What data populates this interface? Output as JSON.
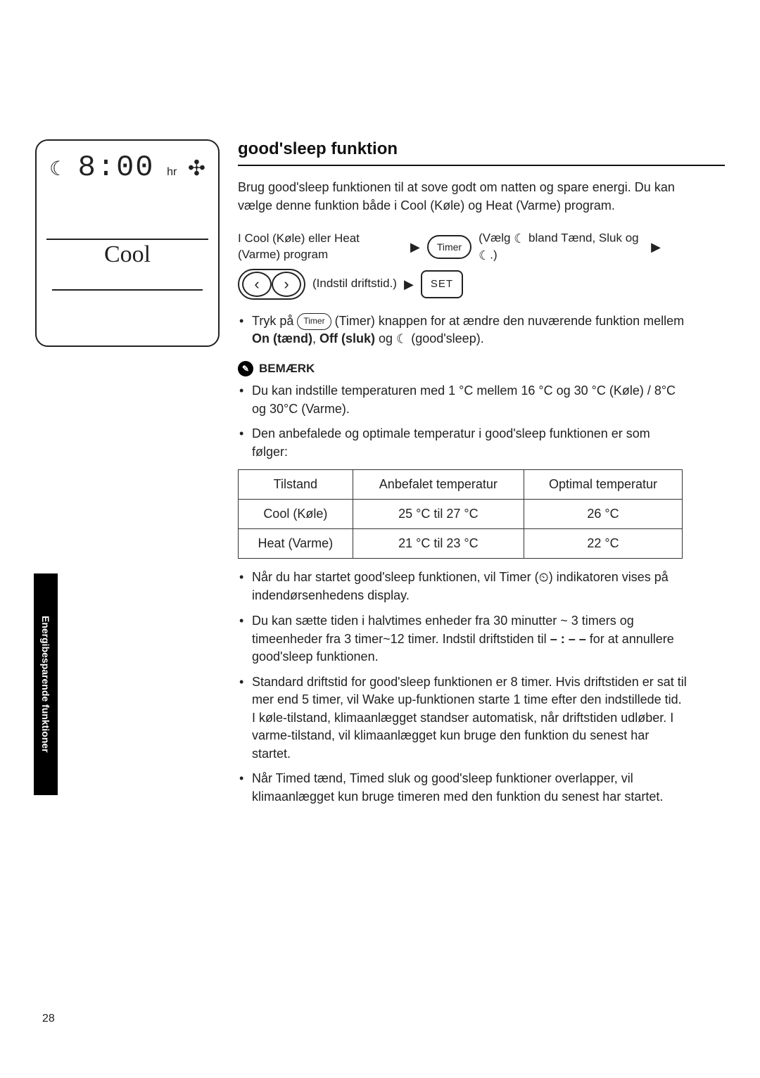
{
  "side_tab": "Energibesparende funktioner",
  "page_number": "28",
  "remote": {
    "time": "8:00",
    "hr": "hr",
    "mode": "Cool"
  },
  "title": "good'sleep funktion",
  "intro": "Brug good'sleep funktionen til at sove godt om natten og spare energi. Du kan vælge denne funktion både i Cool (Køle) og Heat (Varme) program.",
  "flow": {
    "step1": "I Cool (Køle) eller Heat (Varme) program",
    "timer_btn": "Timer",
    "step2a": "(Vælg ",
    "step2b": " bland Tænd, Sluk og ",
    "step2c": ".)",
    "step3": "(Indstil driftstid.)",
    "set_btn": "SET"
  },
  "timer_note_a": "Tryk på ",
  "timer_note_b": " (Timer) knappen for at ændre den nuværende funktion mellem ",
  "timer_note_bold1": "On (tænd)",
  "timer_note_mid": ", ",
  "timer_note_bold2": "Off (sluk)",
  "timer_note_c": " og ",
  "timer_note_d": " (good'sleep).",
  "note_label": "BEMÆRK",
  "notes": {
    "n1": "Du kan indstille temperaturen med 1 °C mellem 16 °C og 30 °C (Køle) / 8°C og 30°C (Varme).",
    "n2": "Den anbefalede og optimale temperatur i good'sleep funktionen er som følger:"
  },
  "table": {
    "headers": {
      "c1": "Tilstand",
      "c2": "Anbefalet temperatur",
      "c3": "Optimal temperatur"
    },
    "rows": [
      {
        "c1": "Cool (Køle)",
        "c2": "25 °C til 27 °C",
        "c3": "26 °C"
      },
      {
        "c1": "Heat (Varme)",
        "c2": "21 °C til 23 °C",
        "c3": "22 °C"
      }
    ]
  },
  "post_notes": {
    "p1a": "Når du har startet good'sleep funktionen, vil Timer (",
    "p1b": ") indikatoren vises på indendørsenhedens display.",
    "p2a": "Du kan sætte tiden i halvtimes enheder fra 30 minutter ~ 3 timers og timeenheder fra 3 timer~12 timer. Indstil driftstiden til  ",
    "p2dash": "– : – –",
    "p2b": " for at annullere good'sleep funktionen.",
    "p3": "Standard driftstid for good'sleep funktionen er 8 timer. Hvis driftstiden er sat til mer end 5 timer, vil Wake up-funktionen starte 1 time efter den indstillede tid. I køle-tilstand, klimaanlægget standser automatisk, når driftstiden udløber. I varme-tilstand, vil klimaanlægget kun bruge den funktion du senest har startet.",
    "p4": "Når Timed tænd, Timed sluk og good'sleep funktioner overlapper, vil klimaanlægget kun bruge timeren med den funktion du senest har startet."
  },
  "icons": {
    "moon": "☾",
    "moon_crescent": "☽",
    "fan": "✣",
    "timer_clock": "⏲",
    "triangle_right": "▶",
    "chevron_left": "‹",
    "chevron_right": "›",
    "note_glyph": "✎"
  },
  "colors": {
    "text": "#222222",
    "black": "#000000",
    "white": "#ffffff",
    "border": "#333333"
  }
}
